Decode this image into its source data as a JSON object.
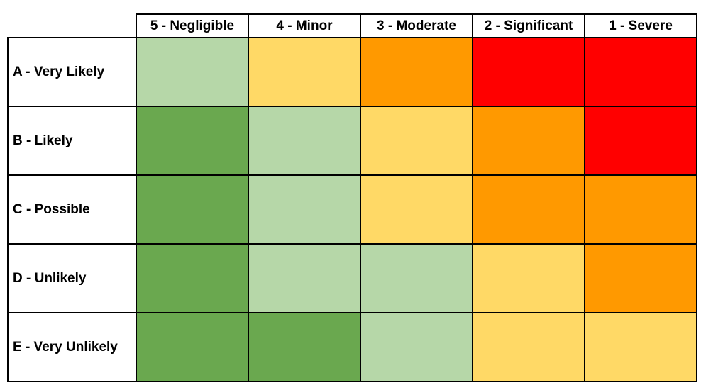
{
  "table": {
    "columns": [
      "5 - Negligible",
      "4 - Minor",
      "3 - Moderate",
      "2 - Significant",
      "1 - Severe"
    ],
    "rows": [
      {
        "label": "A - Very Likely",
        "colors": [
          "#b6d7a8",
          "#ffd966",
          "#ff9900",
          "#ff0000",
          "#ff0000"
        ]
      },
      {
        "label": "B - Likely",
        "colors": [
          "#6aa84f",
          "#b6d7a8",
          "#ffd966",
          "#ff9900",
          "#ff0000"
        ]
      },
      {
        "label": "C - Possible",
        "colors": [
          "#6aa84f",
          "#b6d7a8",
          "#ffd966",
          "#ff9900",
          "#ff9900"
        ]
      },
      {
        "label": "D - Unlikely",
        "colors": [
          "#6aa84f",
          "#b6d7a8",
          "#b6d7a8",
          "#ffd966",
          "#ff9900"
        ]
      },
      {
        "label": "E - Very Unlikely",
        "colors": [
          "#6aa84f",
          "#6aa84f",
          "#b6d7a8",
          "#ffd966",
          "#ffd966"
        ]
      }
    ]
  }
}
